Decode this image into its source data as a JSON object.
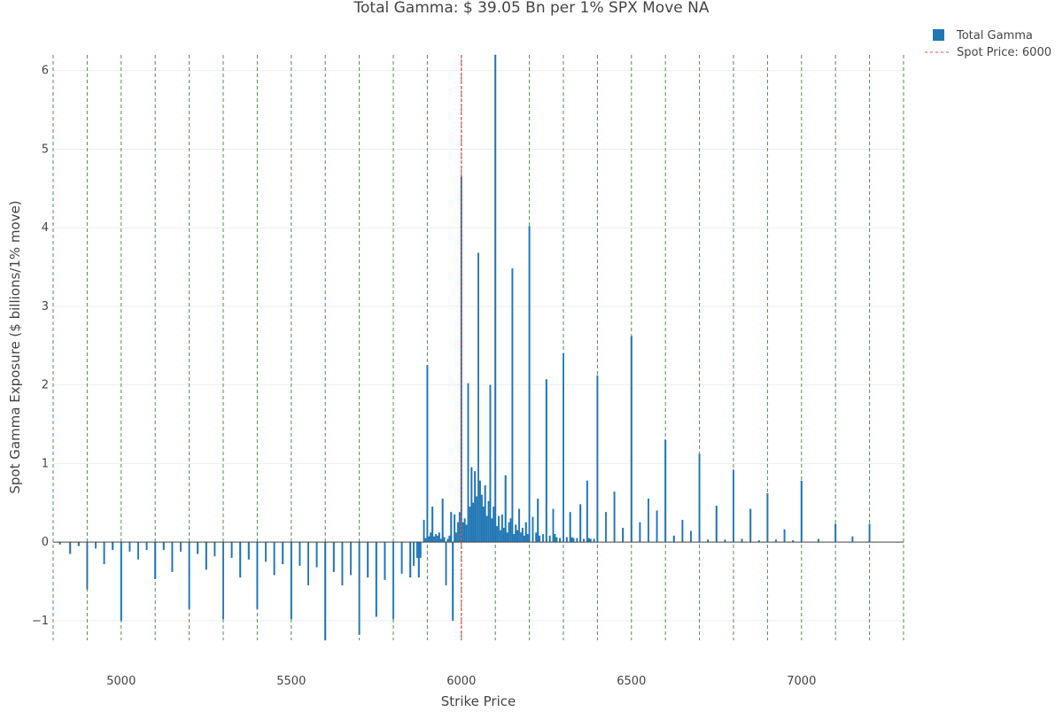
{
  "colors": {
    "bar": "#1f77b4",
    "bar_edge": "#2a7ab9",
    "strike_guides": "#2e7d32",
    "spot": "#e74c3c",
    "grid": "#eeeeee",
    "zero_line": "#444444",
    "text": "#444444"
  },
  "chart_data": {
    "type": "bar",
    "title": "Total Gamma: $ 39.05  Bn per 1% SPX Move  NA",
    "xlabel": "Strike Price",
    "ylabel": "Spot Gamma Exposure ($ billions/1% move)",
    "xlim": [
      4800,
      7300
    ],
    "ylim": [
      -1.25,
      6.2
    ],
    "x_ticks": [
      5000,
      5500,
      6000,
      6500,
      7000
    ],
    "y_ticks": [
      -1,
      0,
      1,
      2,
      3,
      4,
      5,
      6
    ],
    "grid": "horizontal",
    "legend_position": "top-right",
    "legend": [
      {
        "label": "Total Gamma",
        "kind": "bar"
      },
      {
        "label": "Spot Price:  6000",
        "kind": "dashed-line"
      }
    ],
    "spot_price": 6000,
    "strike_guides": [
      4800,
      4900,
      5000,
      5100,
      5200,
      5300,
      5400,
      5500,
      5600,
      5700,
      5800,
      5900,
      6000,
      6100,
      6200,
      6300,
      6400,
      6500,
      6600,
      6700,
      6800,
      6900,
      7000,
      7100,
      7200,
      7300
    ],
    "series": [
      {
        "name": "Total Gamma",
        "x": [
          4820,
          4850,
          4875,
          4900,
          4925,
          4950,
          4975,
          5000,
          5025,
          5050,
          5075,
          5100,
          5125,
          5150,
          5175,
          5200,
          5225,
          5250,
          5275,
          5300,
          5325,
          5350,
          5375,
          5400,
          5425,
          5450,
          5475,
          5500,
          5525,
          5550,
          5575,
          5600,
          5625,
          5650,
          5675,
          5700,
          5725,
          5750,
          5775,
          5800,
          5825,
          5850,
          5860,
          5870,
          5875,
          5880,
          5890,
          5895,
          5900,
          5905,
          5910,
          5915,
          5920,
          5925,
          5930,
          5935,
          5940,
          5945,
          5950,
          5955,
          5960,
          5965,
          5970,
          5975,
          5980,
          5985,
          5990,
          5995,
          6000,
          6005,
          6010,
          6015,
          6020,
          6025,
          6030,
          6035,
          6040,
          6045,
          6050,
          6055,
          6060,
          6065,
          6070,
          6075,
          6080,
          6085,
          6090,
          6095,
          6100,
          6105,
          6110,
          6115,
          6120,
          6125,
          6130,
          6135,
          6140,
          6145,
          6150,
          6155,
          6160,
          6165,
          6170,
          6175,
          6180,
          6185,
          6190,
          6195,
          6200,
          6210,
          6220,
          6225,
          6230,
          6240,
          6250,
          6260,
          6270,
          6275,
          6280,
          6290,
          6300,
          6310,
          6320,
          6325,
          6330,
          6340,
          6350,
          6360,
          6370,
          6375,
          6380,
          6390,
          6400,
          6425,
          6450,
          6475,
          6500,
          6525,
          6550,
          6575,
          6600,
          6625,
          6650,
          6675,
          6700,
          6725,
          6750,
          6775,
          6800,
          6825,
          6850,
          6875,
          6900,
          6925,
          6950,
          6975,
          7000,
          7050,
          7100,
          7150,
          7200
        ],
        "values": [
          -0.03,
          -0.15,
          -0.05,
          -0.6,
          -0.08,
          -0.28,
          -0.1,
          -1.0,
          -0.12,
          -0.22,
          -0.1,
          -0.47,
          -0.1,
          -0.38,
          -0.12,
          -0.85,
          -0.15,
          -0.35,
          -0.18,
          -0.98,
          -0.2,
          -0.45,
          -0.22,
          -0.85,
          -0.25,
          -0.42,
          -0.28,
          -0.98,
          -0.3,
          -0.55,
          -0.32,
          -1.25,
          -0.38,
          -0.55,
          -0.42,
          -1.18,
          -0.45,
          -0.95,
          -0.48,
          -0.98,
          -0.4,
          -0.45,
          -0.3,
          -0.2,
          -0.45,
          -0.2,
          0.28,
          0.05,
          2.25,
          0.07,
          0.12,
          0.45,
          0.07,
          0.1,
          0.08,
          0.12,
          0.04,
          0.55,
          0.06,
          -0.55,
          0.04,
          0.08,
          0.38,
          -1.0,
          0.35,
          0.12,
          0.25,
          0.38,
          4.65,
          0.25,
          0.3,
          0.22,
          2.02,
          0.45,
          0.95,
          0.5,
          0.9,
          0.58,
          3.68,
          0.78,
          0.6,
          0.45,
          0.72,
          0.33,
          0.52,
          2.0,
          0.3,
          0.45,
          6.2,
          0.2,
          0.33,
          0.15,
          0.35,
          0.18,
          0.85,
          0.12,
          0.25,
          0.3,
          3.48,
          0.1,
          0.22,
          0.15,
          0.42,
          0.12,
          0.18,
          0.08,
          0.25,
          0.1,
          4.02,
          0.32,
          0.12,
          0.55,
          0.08,
          0.1,
          2.07,
          0.08,
          0.42,
          0.1,
          0.06,
          0.05,
          2.4,
          0.06,
          0.38,
          0.06,
          0.05,
          0.05,
          0.48,
          0.04,
          0.78,
          0.05,
          0.04,
          0.04,
          2.12,
          0.38,
          0.64,
          0.18,
          2.62,
          0.25,
          0.55,
          0.4,
          1.3,
          0.08,
          0.28,
          0.14,
          1.12,
          0.03,
          0.46,
          0.03,
          0.92,
          0.04,
          0.42,
          0.02,
          0.62,
          0.03,
          0.16,
          0.02,
          0.78,
          0.04,
          0.23,
          0.07,
          0.23
        ]
      }
    ]
  }
}
